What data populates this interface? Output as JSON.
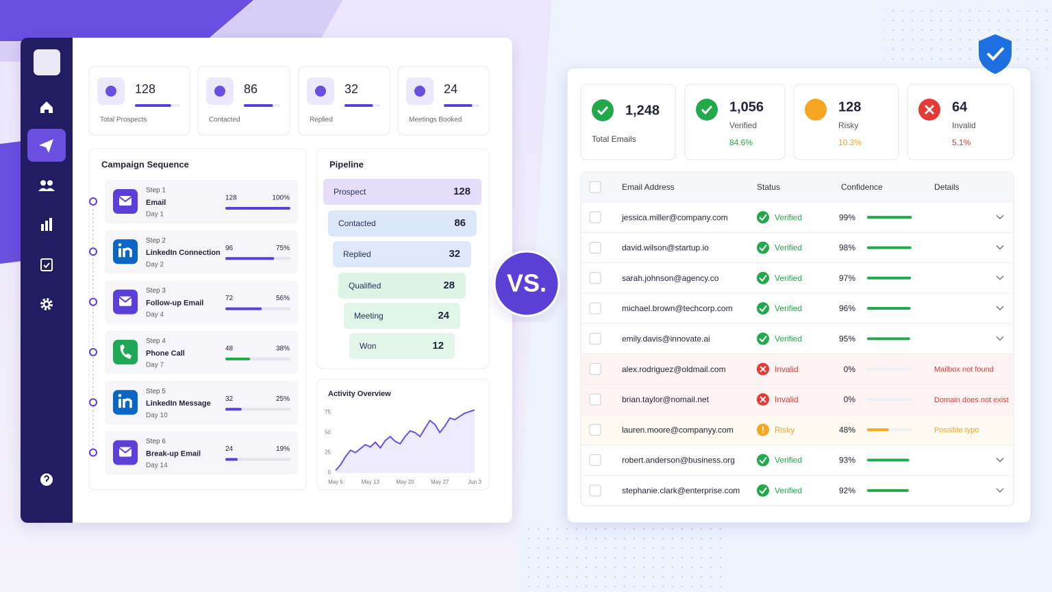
{
  "left": {
    "stats": [
      {
        "value": 128,
        "label": "Total Prospects"
      },
      {
        "value": 86,
        "label": "Contacted"
      },
      {
        "value": 32,
        "label": "Replied"
      },
      {
        "value": 24,
        "label": "Meetings Booked"
      }
    ],
    "campaign": {
      "title": "Campaign Sequence",
      "steps": [
        {
          "step": "Step 1",
          "name": "Email",
          "day": "Day 1",
          "count": 128,
          "percent": 100,
          "percent_label": "100%",
          "color": "#5b3fd6"
        },
        {
          "step": "Step 2",
          "name": "LinkedIn Connection",
          "day": "Day 2",
          "count": 96,
          "percent": 75,
          "percent_label": "75%",
          "color": "#5b3fd6"
        },
        {
          "step": "Step 3",
          "name": "Follow-up Email",
          "day": "Day 4",
          "count": 72,
          "percent": 56,
          "percent_label": "56%",
          "color": "#5b3fd6"
        },
        {
          "step": "Step 4",
          "name": "Phone Call",
          "day": "Day 7",
          "count": 48,
          "percent": 38,
          "percent_label": "38%",
          "color": "#22a94b"
        },
        {
          "step": "Step 5",
          "name": "LinkedIn Message",
          "day": "Day 10",
          "count": 32,
          "percent": 25,
          "percent_label": "25%",
          "color": "#5b3fd6"
        },
        {
          "step": "Step 6",
          "name": "Break-up Email",
          "day": "Day 14",
          "count": 24,
          "percent": 19,
          "percent_label": "19%",
          "color": "#5b3fd6"
        }
      ]
    },
    "pipeline": {
      "title": "Pipeline",
      "stages": [
        {
          "name": "Prospect",
          "value": 128,
          "color": "#e6ddfb"
        },
        {
          "name": "Contacted",
          "value": 86,
          "color": "#dbe8fb"
        },
        {
          "name": "Replied",
          "value": 32,
          "color": "#dde9fb"
        },
        {
          "name": "Qualified",
          "value": 28,
          "color": "#dff3e6"
        },
        {
          "name": "Meeting",
          "value": 24,
          "color": "#e1f4e8"
        },
        {
          "name": "Won",
          "value": 12,
          "color": "#e4f5ea"
        }
      ]
    },
    "activity": {
      "type": "line",
      "title": "Activity Overview",
      "categories": [
        "May 6",
        null,
        null,
        null,
        null,
        null,
        null,
        "May 13",
        null,
        null,
        null,
        null,
        null,
        null,
        "May 20",
        null,
        null,
        null,
        null,
        null,
        null,
        "May 27",
        null,
        null,
        null,
        null,
        null,
        null,
        "Jun 3"
      ],
      "values": [
        3,
        10,
        20,
        28,
        25,
        30,
        35,
        32,
        38,
        31,
        40,
        45,
        39,
        36,
        45,
        52,
        50,
        45,
        55,
        65,
        60,
        50,
        58,
        68,
        66,
        70,
        74,
        76,
        78
      ],
      "ylim": [
        0,
        80
      ],
      "yticks": [
        0,
        25,
        50,
        75
      ],
      "color": "#6a4fe0"
    }
  },
  "vs": "VS.",
  "right": {
    "stats": [
      {
        "value": "1,248",
        "label": "Total Emails",
        "color": "#22a94b"
      },
      {
        "value": "1,056",
        "label": "Verified",
        "rate": "84.6%",
        "color": "#22a94b"
      },
      {
        "value": 128,
        "label": "Risky",
        "rate": "10.3%",
        "color": "#f5a623"
      },
      {
        "value": 64,
        "label": "Invalid",
        "rate": "5.1%",
        "color": "#e53935"
      }
    ],
    "table": {
      "columns": [
        "Email Address",
        "Status",
        "Confidence",
        "Details"
      ],
      "rows": [
        {
          "email": "jessica.miller@company.com",
          "status": "Verified",
          "confidence": 99,
          "confidence_label": "99%",
          "color": "#22a94b"
        },
        {
          "email": "david.wilson@startup.io",
          "status": "Verified",
          "confidence": 98,
          "confidence_label": "98%",
          "color": "#22a94b"
        },
        {
          "email": "sarah.johnson@agency.co",
          "status": "Verified",
          "confidence": 97,
          "confidence_label": "97%",
          "color": "#22a94b"
        },
        {
          "email": "michael.brown@techcorp.com",
          "status": "Verified",
          "confidence": 96,
          "confidence_label": "96%",
          "color": "#22a94b"
        },
        {
          "email": "emily.davis@innovate.ai",
          "status": "Verified",
          "confidence": 95,
          "confidence_label": "95%",
          "color": "#22a94b"
        },
        {
          "email": "alex.rodriguez@oldmail.com",
          "status": "Invalid",
          "confidence": 0,
          "confidence_label": "0%",
          "color": "#e53935",
          "details": "Mailbox not found"
        },
        {
          "email": "brian.taylor@nomail.net",
          "status": "Invalid",
          "confidence": 0,
          "confidence_label": "0%",
          "color": "#e53935",
          "details": "Domain does not exist"
        },
        {
          "email": "lauren.moore@companyy.com",
          "status": "Risky",
          "confidence": 48,
          "confidence_label": "48%",
          "color": "#f5a623",
          "details": "Possible typo"
        },
        {
          "email": "robert.anderson@business.org",
          "status": "Verified",
          "confidence": 93,
          "confidence_label": "93%",
          "color": "#22a94b"
        },
        {
          "email": "stephanie.clark@enterprise.com",
          "status": "Verified",
          "confidence": 92,
          "confidence_label": "92%",
          "color": "#22a94b"
        }
      ]
    }
  }
}
